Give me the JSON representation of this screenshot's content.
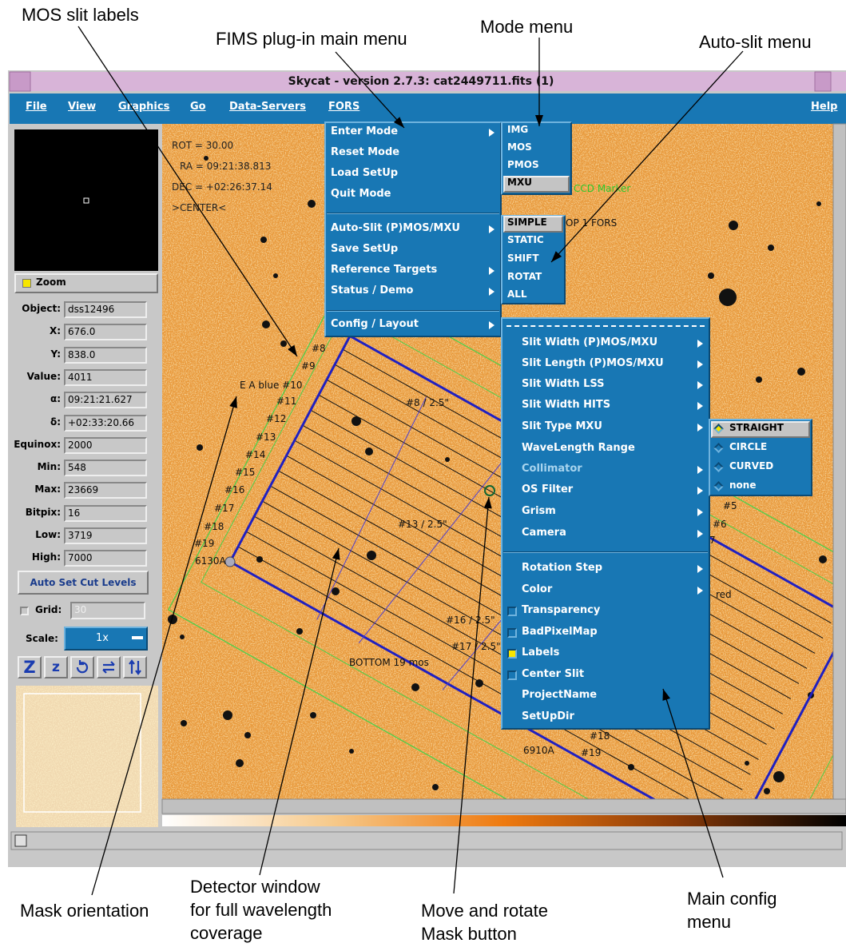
{
  "annotations": [
    [
      "MOS slit labels"
    ],
    [
      "FIMS plug-in main menu"
    ],
    [
      "Mode menu"
    ],
    [
      "Auto-slit menu"
    ],
    [
      "Mask orientation"
    ],
    [
      "Detector window",
      "for full wavelength",
      "coverage"
    ],
    [
      "Move and rotate",
      "Mask button"
    ],
    [
      "Main config",
      "menu"
    ]
  ],
  "window": {
    "title": "Skycat - version 2.7.3: cat2449711.fits (1)"
  },
  "menubar": [
    "File",
    "View",
    "Graphics",
    "Go",
    "Data-Servers",
    "FORS",
    "Help"
  ],
  "panel": {
    "zoom": "Zoom",
    "fields": [
      {
        "label": "Object:",
        "value": "dss12496"
      },
      {
        "label": "X:",
        "value": "676.0"
      },
      {
        "label": "Y:",
        "value": "838.0"
      },
      {
        "label": "Value:",
        "value": "4011"
      },
      {
        "label": "α:",
        "value": "09:21:21.627"
      },
      {
        "label": "δ:",
        "value": "+02:33:20.66"
      },
      {
        "label": "Equinox:",
        "value": "2000"
      },
      {
        "label": "Min:",
        "value": "548"
      },
      {
        "label": "Max:",
        "value": "23669"
      },
      {
        "label": "Bitpix:",
        "value": "16"
      },
      {
        "label": "Low:",
        "value": "3719"
      },
      {
        "label": "High:",
        "value": "7000"
      }
    ],
    "button": "Auto Set Cut Levels",
    "grid_label": "Grid:",
    "grid_value": "30",
    "scale_label": "Scale:",
    "scale_value": "1x",
    "tools": [
      "Z",
      "z"
    ]
  },
  "image": {
    "info": [
      "ROT = 30.00",
      "RA = 09:21:38.813",
      "DEC = +02:26:37.14",
      ">CENTER<"
    ],
    "labels": [
      "#8",
      "#9",
      "E A blue #10",
      "#11",
      "#12",
      "#13",
      "#14",
      "#15",
      "#16",
      "#17",
      "#18",
      "#19",
      "6130A",
      "#8 / 2.5\"",
      "#13 / 2.5\"",
      "#16 / 2.5\"",
      "#17 / 2.5\"",
      "BOTTOM 19 mos",
      "#18",
      "#19",
      "6910A",
      "OP 1  FORS",
      "#5",
      "#6",
      "7",
      "red"
    ],
    "ccd_marker": "CCD Marker"
  },
  "menus": {
    "fors": [
      "Enter Mode",
      "Reset Mode",
      "Load SetUp",
      "Quit Mode",
      "Auto-Slit (P)MOS/MXU",
      "Save SetUp",
      "Reference Targets",
      "Status / Demo",
      "Config / Layout"
    ],
    "mode": [
      "IMG",
      "MOS",
      "PMOS",
      "MXU"
    ],
    "autoslit": [
      "SIMPLE",
      "STATIC",
      "SHIFT",
      "ROTAT",
      "ALL"
    ],
    "config": [
      "Slit Width (P)MOS/MXU",
      "Slit Length (P)MOS/MXU",
      "Slit Width LSS",
      "Slit Width HITS",
      "Slit Type MXU",
      "WaveLength Range",
      "Collimator",
      "OS Filter",
      "Grism",
      "Camera",
      "Rotation Step",
      "Color",
      "Transparency",
      "BadPixelMap",
      "Labels",
      "Center Slit",
      "ProjectName",
      "SetUpDir"
    ],
    "slit_type": [
      "STRAIGHT",
      "CIRCLE",
      "CURVED",
      "none"
    ]
  }
}
